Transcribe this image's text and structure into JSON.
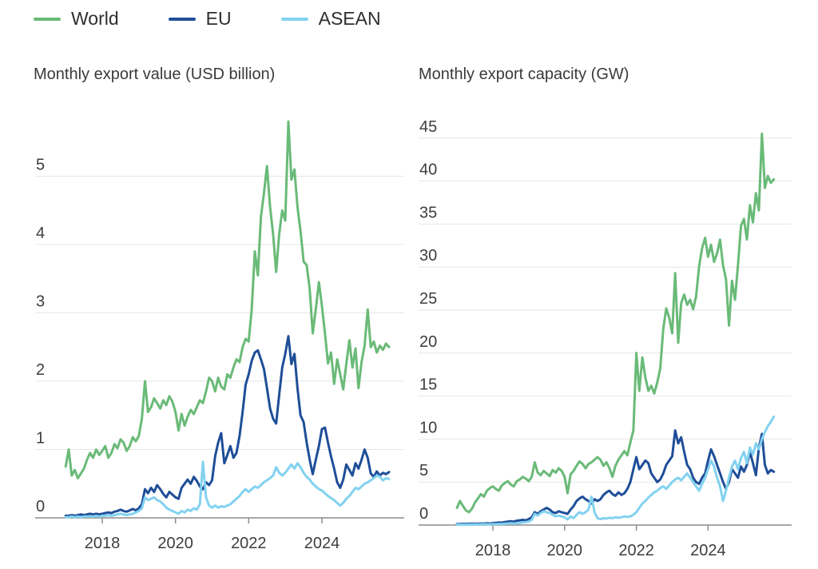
{
  "legend": {
    "items": [
      {
        "label": "World",
        "color": "#6aba78"
      },
      {
        "label": "EU",
        "color": "#1f4e98"
      },
      {
        "label": "ASEAN",
        "color": "#82d2f0"
      }
    ]
  },
  "colors": {
    "world": "#6aba78",
    "eu": "#1f4e98",
    "asean": "#82d2f0",
    "gridline": "#e6e6e6",
    "axis_line": "#8c8c8c",
    "label_text": "#3d3d3d"
  },
  "chart_data": [
    {
      "type": "line",
      "title": "Monthly export value (USD billion)",
      "x_start": "2017-01",
      "x_step": "month",
      "x_end": "2025-11",
      "xticks": [
        2018,
        2020,
        2022,
        2024
      ],
      "yticks": [
        0,
        1,
        2,
        3,
        4,
        5
      ],
      "ylim": [
        0,
        5.9
      ],
      "grid": "horizontal",
      "legend_position": "top-left",
      "series": [
        {
          "name": "World",
          "color": "#6aba78",
          "values": [
            0.75,
            1.0,
            0.62,
            0.7,
            0.58,
            0.65,
            0.72,
            0.85,
            0.95,
            0.88,
            1.0,
            0.92,
            0.98,
            1.05,
            0.88,
            0.95,
            1.08,
            1.02,
            1.15,
            1.1,
            0.98,
            1.05,
            1.18,
            1.12,
            1.2,
            1.45,
            2.0,
            1.55,
            1.62,
            1.75,
            1.68,
            1.6,
            1.72,
            1.65,
            1.78,
            1.7,
            1.55,
            1.28,
            1.52,
            1.35,
            1.48,
            1.58,
            1.52,
            1.62,
            1.72,
            1.68,
            1.85,
            2.05,
            2.0,
            1.85,
            2.05,
            1.92,
            1.88,
            2.1,
            2.05,
            2.2,
            2.32,
            2.28,
            2.5,
            2.62,
            2.58,
            3.05,
            3.9,
            3.55,
            4.4,
            4.75,
            5.15,
            4.55,
            4.15,
            3.6,
            4.15,
            4.5,
            4.35,
            5.8,
            4.95,
            5.1,
            4.55,
            4.2,
            3.75,
            3.7,
            3.35,
            2.7,
            3.05,
            3.45,
            3.1,
            2.7,
            2.26,
            2.42,
            1.96,
            2.32,
            2.1,
            1.88,
            2.25,
            2.6,
            2.2,
            2.48,
            1.9,
            2.28,
            2.52,
            3.05,
            2.5,
            2.58,
            2.42,
            2.52,
            2.46,
            2.55,
            2.5
          ]
        },
        {
          "name": "EU",
          "color": "#1f4e98",
          "values": [
            0.03,
            0.03,
            0.04,
            0.03,
            0.04,
            0.05,
            0.04,
            0.05,
            0.06,
            0.05,
            0.06,
            0.05,
            0.06,
            0.07,
            0.08,
            0.07,
            0.09,
            0.1,
            0.12,
            0.1,
            0.09,
            0.11,
            0.13,
            0.11,
            0.14,
            0.2,
            0.42,
            0.36,
            0.44,
            0.38,
            0.48,
            0.42,
            0.35,
            0.3,
            0.38,
            0.34,
            0.3,
            0.28,
            0.44,
            0.5,
            0.56,
            0.5,
            0.6,
            0.54,
            0.46,
            0.42,
            0.52,
            0.48,
            0.55,
            0.9,
            1.1,
            1.24,
            0.8,
            0.92,
            1.05,
            0.88,
            0.95,
            1.2,
            1.55,
            1.95,
            2.1,
            2.3,
            2.42,
            2.45,
            2.32,
            2.18,
            1.9,
            1.6,
            1.45,
            1.38,
            1.8,
            2.2,
            2.4,
            2.66,
            2.25,
            2.4,
            1.9,
            1.5,
            1.4,
            1.1,
            0.85,
            0.64,
            0.85,
            1.05,
            1.3,
            1.32,
            1.1,
            0.9,
            0.72,
            0.52,
            0.44,
            0.56,
            0.78,
            0.7,
            0.62,
            0.8,
            0.72,
            0.85,
            1.0,
            0.88,
            0.65,
            0.6,
            0.68,
            0.62,
            0.66,
            0.64,
            0.67
          ]
        },
        {
          "name": "ASEAN",
          "color": "#82d2f0",
          "values": [
            0.01,
            0.01,
            0.02,
            0.01,
            0.02,
            0.01,
            0.02,
            0.02,
            0.02,
            0.02,
            0.03,
            0.02,
            0.03,
            0.03,
            0.04,
            0.03,
            0.04,
            0.05,
            0.06,
            0.05,
            0.04,
            0.05,
            0.06,
            0.08,
            0.1,
            0.14,
            0.3,
            0.26,
            0.28,
            0.3,
            0.26,
            0.24,
            0.2,
            0.15,
            0.12,
            0.1,
            0.08,
            0.06,
            0.1,
            0.08,
            0.12,
            0.1,
            0.14,
            0.12,
            0.2,
            0.82,
            0.3,
            0.18,
            0.15,
            0.18,
            0.15,
            0.17,
            0.16,
            0.18,
            0.2,
            0.24,
            0.28,
            0.32,
            0.38,
            0.42,
            0.38,
            0.42,
            0.46,
            0.44,
            0.48,
            0.52,
            0.55,
            0.58,
            0.62,
            0.74,
            0.66,
            0.62,
            0.66,
            0.72,
            0.78,
            0.72,
            0.8,
            0.74,
            0.66,
            0.6,
            0.56,
            0.5,
            0.46,
            0.42,
            0.4,
            0.36,
            0.32,
            0.29,
            0.26,
            0.22,
            0.18,
            0.22,
            0.28,
            0.32,
            0.38,
            0.44,
            0.42,
            0.46,
            0.5,
            0.52,
            0.55,
            0.58,
            0.62,
            0.6,
            0.55,
            0.58,
            0.57
          ]
        }
      ]
    },
    {
      "type": "line",
      "title": "Monthly export capacity (GW)",
      "x_start": "2017-01",
      "x_step": "month",
      "x_end": "2025-11",
      "xticks": [
        2018,
        2020,
        2022,
        2024
      ],
      "yticks": [
        0,
        5,
        10,
        15,
        20,
        25,
        30,
        35,
        40,
        45
      ],
      "ylim": [
        0,
        46
      ],
      "grid": "horizontal",
      "legend_position": "top-left",
      "series": [
        {
          "name": "World",
          "color": "#6aba78",
          "values": [
            2.0,
            2.8,
            2.2,
            1.7,
            1.5,
            1.9,
            2.6,
            3.1,
            3.6,
            3.3,
            4.0,
            4.3,
            4.5,
            4.2,
            4.0,
            4.6,
            4.9,
            5.1,
            4.7,
            4.5,
            5.1,
            5.3,
            5.6,
            5.4,
            5.1,
            5.6,
            7.3,
            6.1,
            5.8,
            6.3,
            6.0,
            5.7,
            6.4,
            6.1,
            6.6,
            6.3,
            5.6,
            3.7,
            5.9,
            6.3,
            6.9,
            7.4,
            7.1,
            6.6,
            7.1,
            7.3,
            7.6,
            7.9,
            7.6,
            6.9,
            7.3,
            6.6,
            5.6,
            6.9,
            7.6,
            8.1,
            8.6,
            8.1,
            9.6,
            11.0,
            20.0,
            15.6,
            19.5,
            17.2,
            15.6,
            16.2,
            15.3,
            16.6,
            18.2,
            22.8,
            25.2,
            24.1,
            22.3,
            29.3,
            21.2,
            25.8,
            26.8,
            25.6,
            26.2,
            25.1,
            26.6,
            30.1,
            32.2,
            33.4,
            31.2,
            32.6,
            30.6,
            31.6,
            33.2,
            30.2,
            28.6,
            23.2,
            28.4,
            26.2,
            30.2,
            34.8,
            35.6,
            33.2,
            37.2,
            35.2,
            38.6,
            36.6,
            45.5,
            39.2,
            40.6,
            39.8,
            40.2
          ]
        },
        {
          "name": "EU",
          "color": "#1f4e98",
          "values": [
            0.12,
            0.12,
            0.15,
            0.13,
            0.15,
            0.16,
            0.15,
            0.17,
            0.18,
            0.17,
            0.2,
            0.18,
            0.22,
            0.25,
            0.3,
            0.28,
            0.35,
            0.4,
            0.45,
            0.4,
            0.5,
            0.55,
            0.6,
            0.55,
            0.7,
            0.9,
            1.5,
            1.3,
            1.6,
            1.8,
            2.0,
            1.8,
            1.5,
            1.4,
            1.6,
            1.5,
            1.4,
            1.3,
            1.8,
            2.2,
            2.8,
            3.1,
            3.3,
            3.0,
            2.8,
            2.5,
            3.0,
            2.8,
            3.0,
            3.5,
            3.8,
            4.0,
            3.6,
            3.4,
            3.8,
            3.5,
            3.7,
            4.2,
            5.0,
            6.5,
            7.9,
            6.5,
            7.0,
            7.5,
            7.2,
            6.0,
            5.5,
            5.0,
            5.3,
            6.0,
            7.0,
            7.5,
            8.0,
            11.0,
            9.5,
            10.2,
            8.5,
            7.0,
            6.5,
            5.5,
            5.0,
            4.8,
            5.5,
            6.0,
            7.5,
            8.8,
            8.0,
            7.0,
            6.0,
            5.0,
            4.2,
            5.0,
            6.5,
            6.0,
            5.5,
            6.8,
            6.2,
            7.0,
            8.5,
            7.2,
            5.8,
            9.0,
            10.6,
            7.0,
            6.0,
            6.4,
            6.2
          ]
        },
        {
          "name": "ASEAN",
          "color": "#82d2f0",
          "values": [
            0.05,
            0.05,
            0.06,
            0.05,
            0.06,
            0.06,
            0.07,
            0.07,
            0.08,
            0.08,
            0.09,
            0.08,
            0.1,
            0.1,
            0.12,
            0.12,
            0.15,
            0.18,
            0.2,
            0.18,
            0.2,
            0.25,
            0.3,
            0.35,
            0.4,
            0.6,
            1.3,
            1.1,
            1.4,
            1.6,
            1.5,
            1.4,
            1.2,
            1.0,
            1.1,
            1.0,
            0.9,
            0.65,
            1.0,
            0.8,
            1.2,
            1.5,
            1.3,
            1.5,
            1.8,
            3.3,
            1.5,
            0.8,
            0.7,
            0.8,
            0.75,
            0.85,
            0.8,
            0.9,
            0.85,
            0.9,
            1.0,
            0.95,
            1.0,
            1.2,
            1.5,
            2.0,
            2.5,
            2.8,
            3.2,
            3.5,
            3.8,
            4.0,
            4.3,
            4.5,
            4.2,
            4.6,
            5.0,
            5.3,
            5.5,
            5.2,
            5.6,
            6.0,
            5.5,
            5.0,
            4.5,
            4.0,
            4.8,
            5.5,
            6.5,
            7.5,
            6.8,
            5.5,
            4.5,
            2.8,
            4.0,
            5.5,
            6.8,
            7.5,
            6.5,
            7.8,
            8.5,
            7.2,
            9.0,
            8.2,
            9.5,
            8.8,
            10.0,
            10.8,
            11.5,
            12.0,
            12.6
          ]
        }
      ]
    }
  ]
}
